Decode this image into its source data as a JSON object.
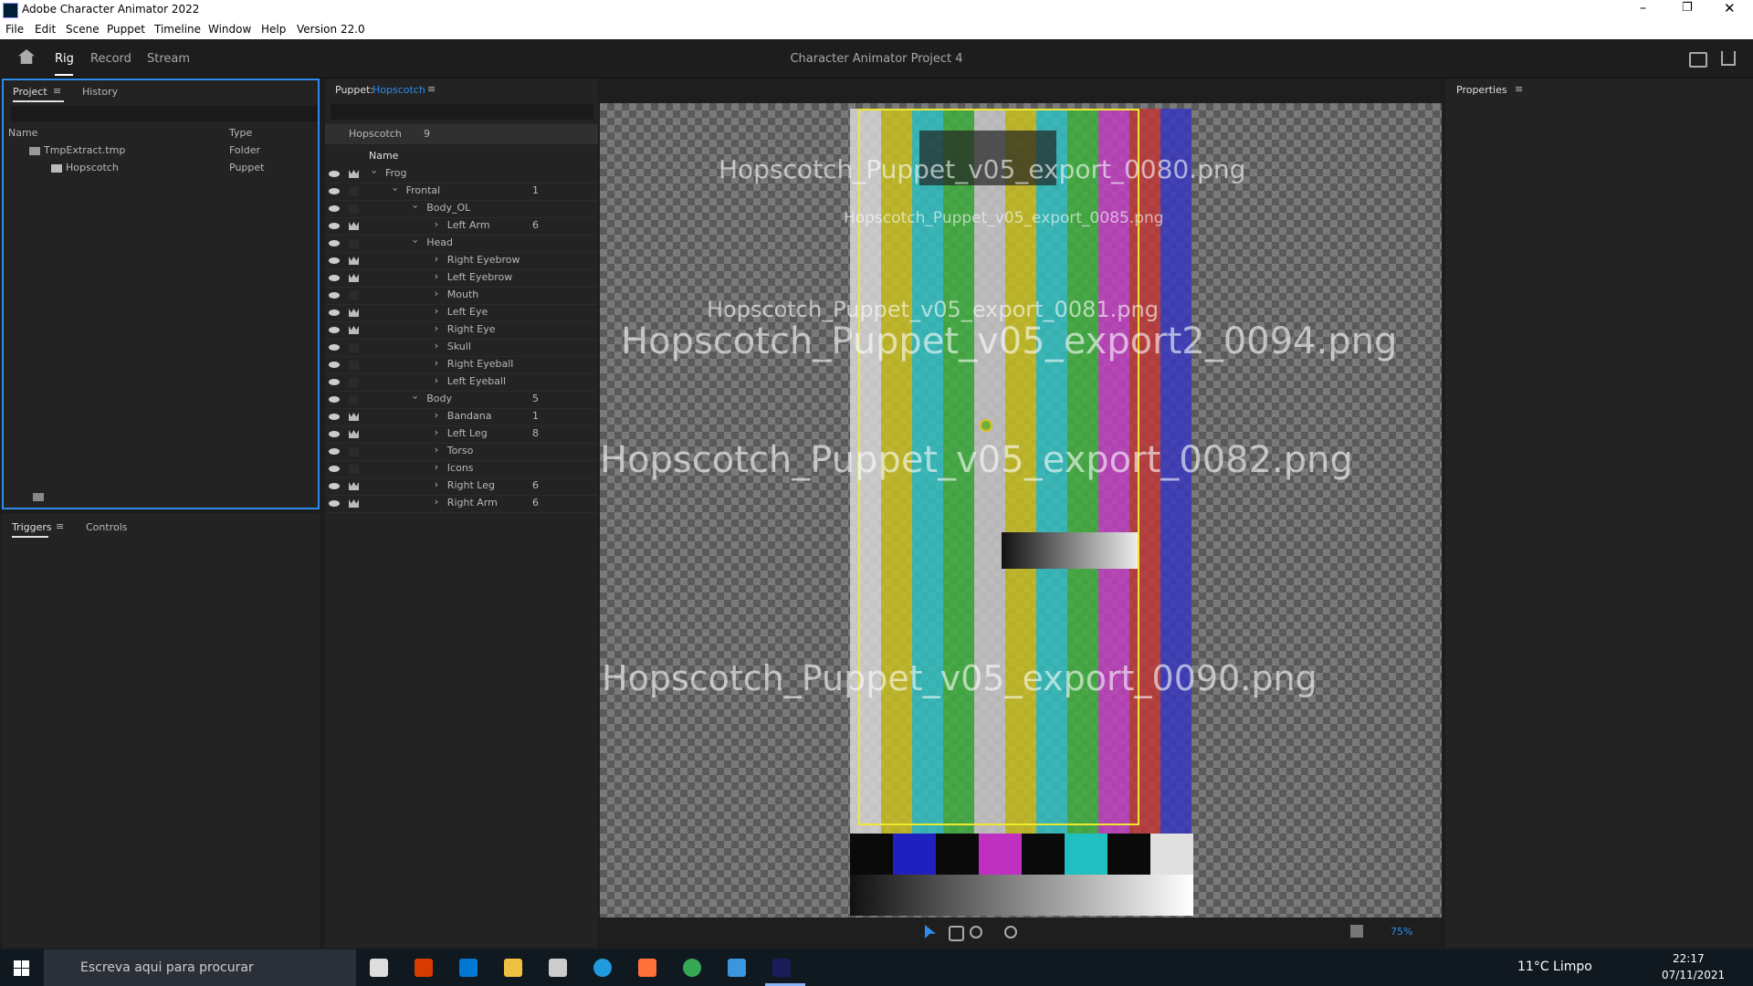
{
  "window": {
    "title": "Adobe Character Animator 2022"
  },
  "menu": [
    "File",
    "Edit",
    "Scene",
    "Puppet",
    "Timeline",
    "Window",
    "Help",
    "Version 22.0"
  ],
  "toolbar": {
    "tabs": [
      "Rig",
      "Record",
      "Stream"
    ],
    "project_title": "Character Animator Project 4"
  },
  "project_panel": {
    "tabs": [
      "Project",
      "History"
    ],
    "columns": [
      "Name",
      "Type"
    ],
    "rows": [
      [
        "TmpExtract.tmp",
        "Folder"
      ],
      [
        "Hopscotch",
        "Puppet"
      ]
    ]
  },
  "triggers_panel": {
    "tabs": [
      "Triggers",
      "Controls"
    ]
  },
  "puppet_panel": {
    "label": "Puppet:",
    "puppet_name": "Hopscotch",
    "crumb": "Hopscotch",
    "crumb_count": 9,
    "column": "Name",
    "layers": [
      {
        "name": "Frog"
      },
      {
        "name": "Frontal",
        "count": 1
      },
      {
        "name": "Body_OL"
      },
      {
        "name": "Left Arm",
        "count": 6
      },
      {
        "name": "Head"
      },
      {
        "name": "Right Eyebrow"
      },
      {
        "name": "Left Eyebrow"
      },
      {
        "name": "Mouth"
      },
      {
        "name": "Left Eye"
      },
      {
        "name": "Right Eye"
      },
      {
        "name": "Skull"
      },
      {
        "name": "Right Eyeball"
      },
      {
        "name": "Left Eyeball"
      },
      {
        "name": "Body",
        "count": 5
      },
      {
        "name": "Bandana",
        "count": 1
      },
      {
        "name": "Left Leg",
        "count": 8
      },
      {
        "name": "Torso"
      },
      {
        "name": "Icons"
      },
      {
        "name": "Right Leg",
        "count": 6
      },
      {
        "name": "Right Arm",
        "count": 6
      }
    ]
  },
  "canvas": {
    "overlay_texts": [
      "Hopscotch_Puppet_v05_export_0080.png",
      "Hopscotch_Puppet_v05_export_0085.png",
      "Hopscotch_Puppet_v05_export_0081.png",
      "Hopscotch_Puppet_v05_export2_0094.png",
      "Hopscotch_Puppet_v05_export_0082.png",
      "Hopscotch_Puppet_v05_export_0090.png"
    ],
    "zoom": "75%"
  },
  "properties_panel": {
    "title": "Properties"
  },
  "taskbar": {
    "search": "Escreva aqui para procurar",
    "weather": "11°C  Limpo",
    "time": "22:17",
    "date": "07/11/2021"
  }
}
